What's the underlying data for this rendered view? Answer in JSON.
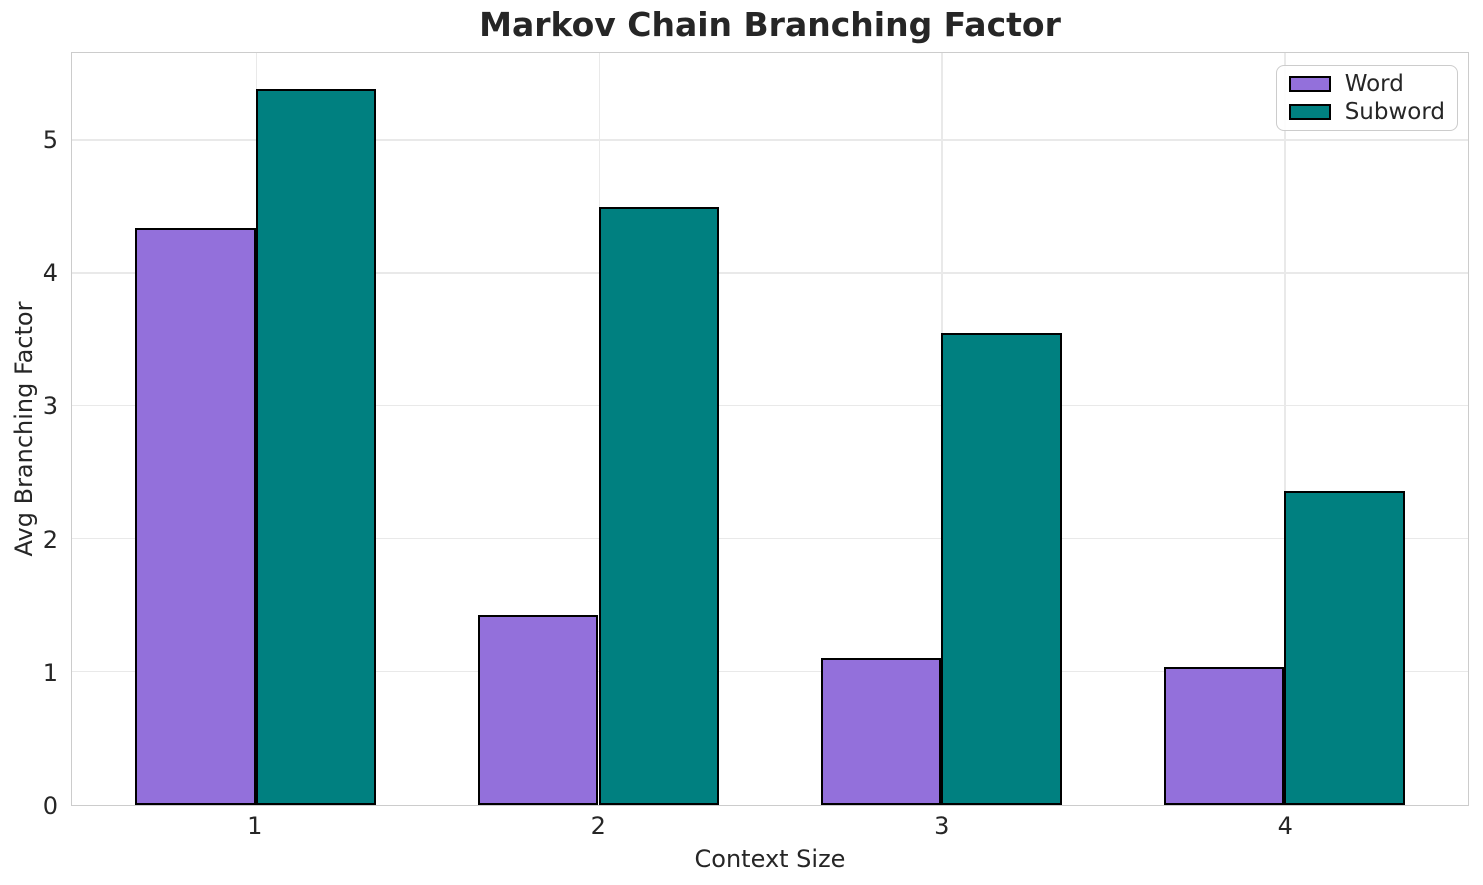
{
  "chart_data": {
    "type": "bar",
    "title": "Markov Chain Branching Factor",
    "xlabel": "Context Size",
    "ylabel": "Avg Branching Factor",
    "categories": [
      "1",
      "2",
      "3",
      "4"
    ],
    "series": [
      {
        "name": "Word",
        "color": "#9370DB",
        "values": [
          4.34,
          1.43,
          1.11,
          1.04
        ]
      },
      {
        "name": "Subword",
        "color": "#008080",
        "values": [
          5.39,
          4.5,
          3.55,
          2.36
        ]
      }
    ],
    "bar_width": 0.35,
    "edge_color": "#000000",
    "edge_width": 2,
    "yticks": [
      0,
      1,
      2,
      3,
      4,
      5
    ],
    "ylim": [
      0,
      5.66
    ],
    "xlim": [
      0.465,
      4.535
    ],
    "grid": true,
    "legend": {
      "position": "upper right",
      "entries": [
        "Word",
        "Subword"
      ]
    }
  },
  "style": {
    "grid_color": "#e9e9e9",
    "spine_color": "#cccccc",
    "text_color": "#262626",
    "background_color": "#ffffff"
  }
}
